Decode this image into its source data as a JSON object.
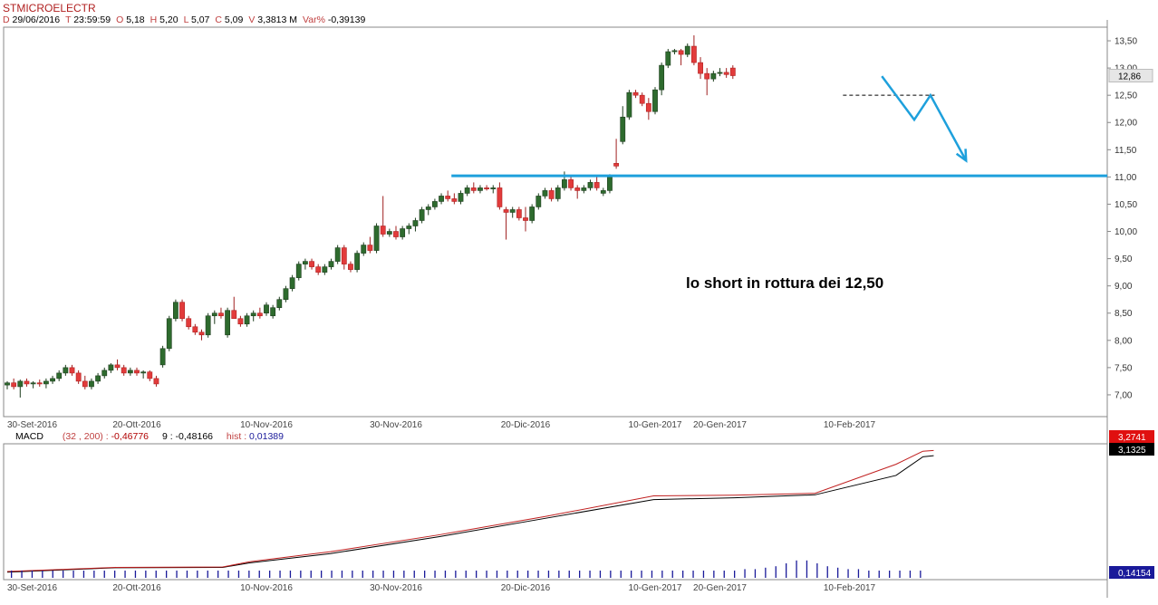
{
  "header": {
    "symbol": "STMICROELECTR",
    "info": [
      {
        "key": "D",
        "value": "29/06/2016"
      },
      {
        "key": "T",
        "value": "23:59:59"
      },
      {
        "key": "O",
        "value": "5,18"
      },
      {
        "key": "H",
        "value": "5,20"
      },
      {
        "key": "L",
        "value": "5,07"
      },
      {
        "key": "C",
        "value": "5,09"
      },
      {
        "key": "V",
        "value": "3,3813 M"
      },
      {
        "key": "Var%",
        "value": "-0,39139"
      }
    ]
  },
  "annotation": "lo short in rottura dei 12,50",
  "colors": {
    "up_candle": "#2e6b2e",
    "down_candle": "#e23b3b",
    "resistance_line": "#1ea0dc",
    "forecast_arrow": "#1ea0dc",
    "macd_line": "#000000",
    "signal_line": "#c02020",
    "hist": "#1a1a9a",
    "last_price_badge": "#e6e6e6"
  },
  "chart_data": [
    {
      "type": "candlestick",
      "title": "",
      "x_ticks": [
        "30-Set-2016",
        "20-Ott-2016",
        "10-Nov-2016",
        "30-Nov-2016",
        "20-Dic-2016",
        "10-Gen-2017",
        "20-Gen-2017",
        "10-Feb-2017"
      ],
      "x_tick_index": [
        0,
        20,
        40,
        60,
        80,
        100,
        110,
        130
      ],
      "y_ticks": [
        "7,00",
        "7,50",
        "8,00",
        "8,50",
        "9,00",
        "9,50",
        "10,00",
        "10,50",
        "11,00",
        "11,50",
        "12,00",
        "12,50",
        "13,00",
        "13,50"
      ],
      "y_tick_values": [
        7.0,
        7.5,
        8.0,
        8.5,
        9.0,
        9.5,
        10.0,
        10.5,
        11.0,
        11.5,
        12.0,
        12.5,
        13.0,
        13.5
      ],
      "ylim": [
        6.6,
        13.75
      ],
      "last_price_label": "12,86",
      "last_price": 12.86,
      "resistance_level": 11.02,
      "resistance_start_index": 68,
      "short_trigger_level": 12.5,
      "short_trigger_range": [
        129,
        143
      ],
      "forecast_path": [
        {
          "i": 135,
          "v": 12.85
        },
        {
          "i": 140,
          "v": 12.05
        },
        {
          "i": 142.5,
          "v": 12.5
        },
        {
          "i": 148,
          "v": 11.3
        }
      ],
      "candles": [
        [
          7.18,
          7.25,
          7.1,
          7.22
        ],
        [
          7.22,
          7.3,
          7.1,
          7.15
        ],
        [
          7.15,
          7.28,
          6.95,
          7.25
        ],
        [
          7.25,
          7.3,
          7.15,
          7.2
        ],
        [
          7.2,
          7.25,
          7.12,
          7.22
        ],
        [
          7.22,
          7.28,
          7.15,
          7.2
        ],
        [
          7.2,
          7.3,
          7.12,
          7.25
        ],
        [
          7.25,
          7.35,
          7.2,
          7.3
        ],
        [
          7.3,
          7.45,
          7.25,
          7.4
        ],
        [
          7.4,
          7.55,
          7.35,
          7.5
        ],
        [
          7.5,
          7.55,
          7.35,
          7.4
        ],
        [
          7.4,
          7.45,
          7.2,
          7.25
        ],
        [
          7.25,
          7.35,
          7.1,
          7.15
        ],
        [
          7.15,
          7.3,
          7.1,
          7.25
        ],
        [
          7.25,
          7.4,
          7.2,
          7.35
        ],
        [
          7.35,
          7.5,
          7.3,
          7.45
        ],
        [
          7.45,
          7.58,
          7.4,
          7.55
        ],
        [
          7.55,
          7.65,
          7.45,
          7.5
        ],
        [
          7.5,
          7.55,
          7.35,
          7.4
        ],
        [
          7.4,
          7.5,
          7.35,
          7.45
        ],
        [
          7.45,
          7.5,
          7.35,
          7.4
        ],
        [
          7.4,
          7.45,
          7.3,
          7.42
        ],
        [
          7.42,
          7.45,
          7.25,
          7.3
        ],
        [
          7.3,
          7.35,
          7.15,
          7.2
        ],
        [
          7.55,
          7.9,
          7.5,
          7.85
        ],
        [
          7.85,
          8.45,
          7.8,
          8.4
        ],
        [
          8.4,
          8.75,
          8.35,
          8.7
        ],
        [
          8.7,
          8.75,
          8.35,
          8.4
        ],
        [
          8.4,
          8.45,
          8.2,
          8.25
        ],
        [
          8.25,
          8.3,
          8.1,
          8.15
        ],
        [
          8.15,
          8.2,
          8.0,
          8.1
        ],
        [
          8.1,
          8.5,
          8.05,
          8.45
        ],
        [
          8.45,
          8.55,
          8.3,
          8.5
        ],
        [
          8.5,
          8.6,
          8.4,
          8.45
        ],
        [
          8.1,
          8.6,
          8.05,
          8.55
        ],
        [
          8.55,
          8.8,
          8.45,
          8.4
        ],
        [
          8.4,
          8.45,
          8.25,
          8.3
        ],
        [
          8.3,
          8.5,
          8.25,
          8.45
        ],
        [
          8.45,
          8.55,
          8.35,
          8.5
        ],
        [
          8.5,
          8.6,
          8.4,
          8.45
        ],
        [
          8.5,
          8.7,
          8.45,
          8.65
        ],
        [
          8.45,
          8.65,
          8.4,
          8.6
        ],
        [
          8.6,
          8.8,
          8.55,
          8.75
        ],
        [
          8.75,
          9.0,
          8.7,
          8.95
        ],
        [
          8.95,
          9.2,
          8.9,
          9.15
        ],
        [
          9.15,
          9.45,
          9.1,
          9.4
        ],
        [
          9.4,
          9.5,
          9.3,
          9.45
        ],
        [
          9.45,
          9.5,
          9.3,
          9.35
        ],
        [
          9.35,
          9.4,
          9.2,
          9.25
        ],
        [
          9.25,
          9.4,
          9.2,
          9.35
        ],
        [
          9.35,
          9.5,
          9.3,
          9.45
        ],
        [
          9.45,
          9.75,
          9.4,
          9.7
        ],
        [
          9.7,
          9.75,
          9.3,
          9.4
        ],
        [
          9.4,
          9.45,
          9.25,
          9.3
        ],
        [
          9.3,
          9.65,
          9.25,
          9.6
        ],
        [
          9.6,
          9.8,
          9.55,
          9.75
        ],
        [
          9.75,
          9.9,
          9.6,
          9.65
        ],
        [
          9.65,
          10.15,
          9.6,
          10.1
        ],
        [
          10.1,
          10.65,
          9.9,
          9.95
        ],
        [
          9.95,
          10.05,
          9.9,
          10.0
        ],
        [
          10.0,
          10.1,
          9.85,
          9.9
        ],
        [
          9.9,
          10.1,
          9.85,
          10.05
        ],
        [
          10.05,
          10.15,
          9.95,
          10.1
        ],
        [
          10.1,
          10.25,
          10.0,
          10.2
        ],
        [
          10.2,
          10.45,
          10.15,
          10.4
        ],
        [
          10.4,
          10.5,
          10.3,
          10.45
        ],
        [
          10.45,
          10.6,
          10.4,
          10.55
        ],
        [
          10.55,
          10.7,
          10.5,
          10.65
        ],
        [
          10.65,
          10.75,
          10.55,
          10.6
        ],
        [
          10.6,
          10.7,
          10.5,
          10.55
        ],
        [
          10.55,
          10.75,
          10.5,
          10.7
        ],
        [
          10.7,
          10.85,
          10.65,
          10.8
        ],
        [
          10.8,
          10.9,
          10.7,
          10.75
        ],
        [
          10.75,
          10.85,
          10.7,
          10.8
        ],
        [
          10.8,
          10.85,
          10.75,
          10.78
        ],
        [
          10.78,
          10.85,
          10.7,
          10.8
        ],
        [
          10.8,
          10.9,
          10.4,
          10.45
        ],
        [
          10.4,
          10.45,
          9.85,
          10.35
        ],
        [
          10.35,
          10.45,
          10.25,
          10.4
        ],
        [
          10.4,
          10.45,
          10.2,
          10.25
        ],
        [
          10.25,
          10.45,
          10.0,
          10.2
        ],
        [
          10.2,
          10.5,
          10.15,
          10.45
        ],
        [
          10.45,
          10.7,
          10.4,
          10.65
        ],
        [
          10.65,
          10.8,
          10.6,
          10.75
        ],
        [
          10.75,
          10.8,
          10.55,
          10.6
        ],
        [
          10.6,
          10.85,
          10.55,
          10.8
        ],
        [
          10.8,
          11.1,
          10.75,
          10.95
        ],
        [
          10.95,
          11.0,
          10.75,
          10.8
        ],
        [
          10.8,
          10.85,
          10.6,
          10.75
        ],
        [
          10.75,
          10.85,
          10.7,
          10.8
        ],
        [
          10.8,
          10.95,
          10.75,
          10.9
        ],
        [
          10.9,
          11.0,
          10.75,
          10.8
        ],
        [
          10.7,
          10.8,
          10.65,
          10.75
        ],
        [
          10.75,
          11.05,
          10.7,
          11.0
        ],
        [
          11.25,
          11.7,
          11.15,
          11.2
        ],
        [
          11.65,
          12.3,
          11.6,
          12.1
        ],
        [
          12.1,
          12.6,
          12.05,
          12.55
        ],
        [
          12.55,
          12.6,
          12.45,
          12.5
        ],
        [
          12.5,
          12.55,
          12.3,
          12.35
        ],
        [
          12.35,
          12.45,
          12.05,
          12.2
        ],
        [
          12.2,
          12.65,
          12.15,
          12.6
        ],
        [
          12.6,
          13.1,
          12.5,
          13.05
        ],
        [
          13.05,
          13.35,
          13.0,
          13.3
        ],
        [
          13.3,
          13.35,
          13.25,
          13.32
        ],
        [
          13.32,
          13.35,
          13.05,
          13.25
        ],
        [
          13.25,
          13.45,
          13.2,
          13.4
        ],
        [
          13.4,
          13.6,
          13.05,
          13.1
        ],
        [
          13.1,
          13.2,
          12.8,
          12.9
        ],
        [
          12.9,
          13.0,
          12.5,
          12.8
        ],
        [
          12.8,
          12.95,
          12.75,
          12.9
        ],
        [
          12.9,
          13.0,
          12.85,
          12.92
        ],
        [
          12.92,
          13.0,
          12.82,
          12.88
        ],
        [
          13.0,
          13.05,
          12.8,
          12.86
        ]
      ]
    },
    {
      "type": "line",
      "title": "MACD",
      "params": "(32 , 200)",
      "macd_value": "-0,46776",
      "signal_label": "9",
      "signal_value": "-0,48166",
      "hist_label": "hist",
      "hist_value": "0,01389",
      "right_labels": {
        "signal": "3,2741",
        "macd": "3,1325",
        "hist": "0,14154"
      },
      "ylim": [
        -0.2,
        3.45
      ],
      "hist_ylim": [
        0,
        0.5
      ],
      "series": [
        {
          "role": "macd",
          "points": [
            [
              0,
              0.0
            ],
            [
              20,
              0.12
            ],
            [
              40,
              0.13
            ],
            [
              45,
              0.25
            ],
            [
              60,
              0.5
            ],
            [
              80,
              0.95
            ],
            [
              100,
              1.45
            ],
            [
              120,
              1.95
            ],
            [
              135,
              2.0
            ],
            [
              150,
              2.08
            ],
            [
              165,
              2.6
            ],
            [
              170,
              3.1
            ],
            [
              172,
              3.13
            ]
          ]
        },
        {
          "role": "signal",
          "points": [
            [
              0,
              0.02
            ],
            [
              20,
              0.13
            ],
            [
              40,
              0.14
            ],
            [
              45,
              0.28
            ],
            [
              60,
              0.55
            ],
            [
              80,
              1.0
            ],
            [
              100,
              1.5
            ],
            [
              120,
              2.05
            ],
            [
              135,
              2.07
            ],
            [
              150,
              2.12
            ],
            [
              165,
              2.9
            ],
            [
              170,
              3.25
            ],
            [
              172,
              3.27
            ]
          ]
        }
      ],
      "histogram": [
        0.05,
        0.05,
        0.05,
        0.05,
        0.05,
        0.05,
        0.05,
        0.05,
        0.05,
        0.05,
        0.05,
        0.05,
        0.05,
        0.05,
        0.05,
        0.05,
        0.05,
        0.05,
        0.05,
        0.05,
        0.05,
        0.05,
        0.05,
        0.05,
        0.05,
        0.05,
        0.05,
        0.05,
        0.05,
        0.05,
        0.05,
        0.05,
        0.05,
        0.05,
        0.05,
        0.05,
        0.05,
        0.05,
        0.05,
        0.05,
        0.05,
        0.05,
        0.05,
        0.05,
        0.05,
        0.05,
        0.05,
        0.05,
        0.05,
        0.05,
        0.05,
        0.05,
        0.05,
        0.05,
        0.05,
        0.05,
        0.05,
        0.05,
        0.05,
        0.05,
        0.05,
        0.05,
        0.05,
        0.05,
        0.05,
        0.05,
        0.05,
        0.05,
        0.05,
        0.05,
        0.05,
        0.06,
        0.06,
        0.07,
        0.08,
        0.1,
        0.12,
        0.12,
        0.1,
        0.08,
        0.07,
        0.06,
        0.06,
        0.05,
        0.05,
        0.05,
        0.05,
        0.05,
        0.05
      ]
    }
  ]
}
